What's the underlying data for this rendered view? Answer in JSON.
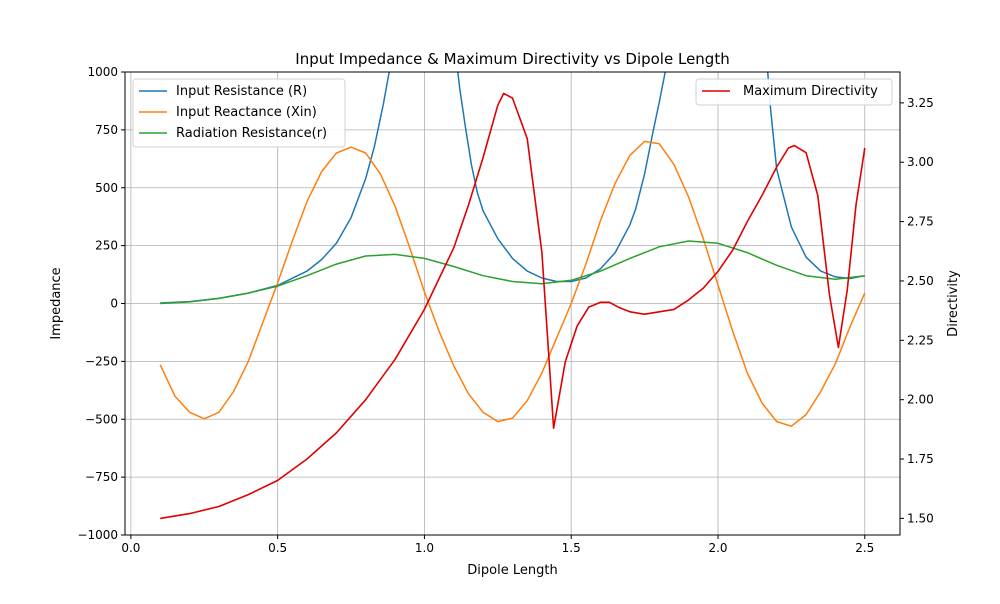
{
  "chart_data": {
    "type": "line",
    "title": "Input Impedance & Maximum Directivity vs Dipole Length",
    "xlabel": "Dipole Length",
    "ylabel": "Impedance",
    "y2label": "Directivity",
    "xlim": [
      -0.02,
      2.62
    ],
    "ylim": [
      -1000,
      1000
    ],
    "y2lim": [
      1.43,
      3.38
    ],
    "x_ticks": [
      0.0,
      0.5,
      1.0,
      1.5,
      2.0,
      2.5
    ],
    "x_tick_labels": [
      "0.0",
      "0.5",
      "1.0",
      "1.5",
      "2.0",
      "2.5"
    ],
    "y_ticks": [
      -1000,
      -750,
      -500,
      -250,
      0,
      250,
      500,
      750,
      1000
    ],
    "y_tick_labels": [
      "−1000",
      "−750",
      "−500",
      "−250",
      "0",
      "250",
      "500",
      "750",
      "1000"
    ],
    "y2_ticks": [
      1.5,
      1.75,
      2.0,
      2.25,
      2.5,
      2.75,
      3.0,
      3.25
    ],
    "y2_tick_labels": [
      "1.50",
      "1.75",
      "2.00",
      "2.25",
      "2.50",
      "2.75",
      "3.00",
      "3.25"
    ],
    "grid": true,
    "legend_left_placement": "upper-left",
    "legend_right_placement": "upper-right",
    "series": [
      {
        "name": "Input Resistance (R)",
        "axis": "left",
        "color": "#1f77b4",
        "x": [
          0.1,
          0.2,
          0.3,
          0.4,
          0.5,
          0.6,
          0.65,
          0.7,
          0.75,
          0.8,
          0.83,
          0.86,
          0.88,
          0.9,
          1.1,
          1.12,
          1.14,
          1.16,
          1.18,
          1.2,
          1.25,
          1.3,
          1.35,
          1.4,
          1.45,
          1.5,
          1.55,
          1.6,
          1.65,
          1.7,
          1.72,
          1.75,
          1.78,
          1.8,
          1.82,
          1.84,
          2.16,
          2.18,
          2.2,
          2.25,
          2.3,
          2.35,
          2.4,
          2.45,
          2.5
        ],
        "y": [
          2,
          8,
          22,
          45,
          78,
          140,
          190,
          260,
          370,
          540,
          680,
          860,
          1000,
          1150,
          1150,
          930,
          760,
          600,
          480,
          400,
          280,
          195,
          140,
          110,
          95,
          95,
          110,
          150,
          220,
          340,
          410,
          560,
          750,
          870,
          1000,
          1150,
          1150,
          830,
          580,
          330,
          200,
          140,
          115,
          108,
          120
        ]
      },
      {
        "name": "Input Reactance (Xin)",
        "axis": "left",
        "color": "#ff7f0e",
        "x": [
          0.1,
          0.15,
          0.2,
          0.25,
          0.3,
          0.35,
          0.4,
          0.45,
          0.5,
          0.55,
          0.6,
          0.65,
          0.7,
          0.75,
          0.8,
          0.85,
          0.9,
          0.95,
          1.0,
          1.05,
          1.1,
          1.15,
          1.2,
          1.25,
          1.3,
          1.35,
          1.4,
          1.45,
          1.5,
          1.55,
          1.6,
          1.65,
          1.7,
          1.75,
          1.8,
          1.85,
          1.9,
          1.95,
          2.0,
          2.05,
          2.1,
          2.15,
          2.2,
          2.25,
          2.3,
          2.35,
          2.4,
          2.45,
          2.5
        ],
        "y": [
          -265,
          -400,
          -470,
          -498,
          -470,
          -380,
          -250,
          -80,
          90,
          270,
          440,
          570,
          650,
          675,
          650,
          560,
          420,
          240,
          50,
          -120,
          -270,
          -390,
          -470,
          -510,
          -495,
          -420,
          -300,
          -150,
          0,
          170,
          360,
          520,
          640,
          700,
          690,
          600,
          460,
          280,
          80,
          -120,
          -300,
          -430,
          -510,
          -530,
          -480,
          -380,
          -260,
          -100,
          45
        ]
      },
      {
        "name": "Radiation Resistance(r)",
        "axis": "left",
        "color": "#2ca02c",
        "x": [
          0.1,
          0.2,
          0.3,
          0.4,
          0.5,
          0.6,
          0.7,
          0.8,
          0.9,
          1.0,
          1.1,
          1.2,
          1.3,
          1.4,
          1.5,
          1.6,
          1.7,
          1.8,
          1.9,
          2.0,
          2.1,
          2.2,
          2.3,
          2.4,
          2.5
        ],
        "y": [
          0,
          7,
          22,
          45,
          75,
          120,
          170,
          205,
          212,
          195,
          160,
          120,
          95,
          85,
          100,
          140,
          195,
          245,
          270,
          260,
          220,
          165,
          120,
          105,
          120
        ]
      },
      {
        "name": "Maximum Directivity",
        "axis": "right",
        "color": "#e00000",
        "x": [
          0.1,
          0.2,
          0.3,
          0.4,
          0.5,
          0.6,
          0.7,
          0.8,
          0.9,
          1.0,
          1.1,
          1.15,
          1.2,
          1.25,
          1.27,
          1.3,
          1.35,
          1.4,
          1.44,
          1.48,
          1.52,
          1.56,
          1.6,
          1.63,
          1.66,
          1.7,
          1.75,
          1.8,
          1.85,
          1.9,
          1.95,
          2.0,
          2.05,
          2.1,
          2.15,
          2.2,
          2.24,
          2.26,
          2.3,
          2.34,
          2.38,
          2.41,
          2.44,
          2.47,
          2.5
        ],
        "y": [
          1.5,
          1.52,
          1.55,
          1.6,
          1.66,
          1.75,
          1.86,
          2.0,
          2.17,
          2.38,
          2.64,
          2.82,
          3.02,
          3.24,
          3.29,
          3.27,
          3.1,
          2.62,
          1.88,
          2.16,
          2.31,
          2.39,
          2.41,
          2.41,
          2.39,
          2.37,
          2.36,
          2.37,
          2.38,
          2.42,
          2.47,
          2.54,
          2.63,
          2.75,
          2.86,
          2.98,
          3.06,
          3.07,
          3.04,
          2.86,
          2.44,
          2.22,
          2.46,
          2.82,
          3.06
        ]
      }
    ]
  }
}
